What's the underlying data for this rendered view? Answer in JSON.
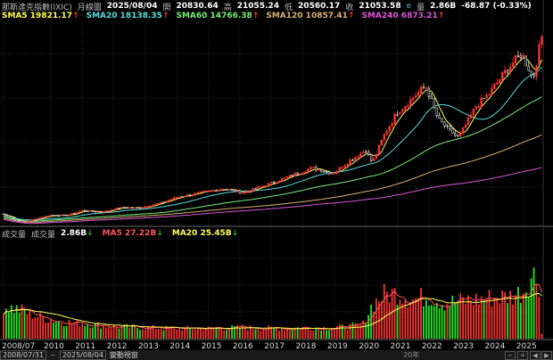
{
  "header": {
    "index_name": "那斯達克指數(IXIC)",
    "period": "月線圖",
    "date": "2025/08/04",
    "open_label": "開",
    "open": "20830.64",
    "high_label": "高",
    "high": "21055.24",
    "low_label": "低",
    "low": "20560.17",
    "close_label": "收",
    "close": "21053.58",
    "e_mark": "e",
    "vol_label": "量",
    "volume": "2.86B",
    "change": "-68.87 (-0.33%)"
  },
  "ma_legend": [
    {
      "text": "SMA5 19821.17",
      "arrow": "↑",
      "color": "#ffff55"
    },
    {
      "text": "SMA20 18138.35",
      "arrow": "↑",
      "color": "#55dddd"
    },
    {
      "text": "SMA60 14766.38",
      "arrow": "↑",
      "color": "#77ee77"
    },
    {
      "text": "SMA120 10857.41",
      "arrow": "↑",
      "color": "#d8b070"
    },
    {
      "text": "SMA240 6873.21",
      "arrow": "↑",
      "color": "#dd55dd"
    }
  ],
  "volume_legend": {
    "title": "成交量",
    "label": "成交量",
    "value": "2.86B",
    "value_arrow": "↓",
    "ma5": "MA5 27.22B",
    "ma5_arrow": "↓",
    "ma5_color": "#ff5555",
    "ma20": "MA20 25.45B",
    "ma20_arrow": "↓",
    "ma20_color": "#ffff55"
  },
  "bottom": {
    "start_date": "2008/07/31",
    "end_date": "2025/08/04",
    "extra": "變動視窗",
    "middle": "20年"
  },
  "colors": {
    "up": "#ff3333",
    "down": "#22ee22",
    "grid": "#333333",
    "background": "#000000"
  },
  "chart_data": {
    "type": "candlestick",
    "x_tick_labels": [
      "2008/07",
      "2010",
      "2011",
      "2012",
      "2013",
      "2014",
      "2015",
      "2016",
      "2017",
      "2018",
      "2019",
      "2020",
      "2021",
      "2022",
      "2023",
      "2024",
      "2025"
    ],
    "x_tick_years": [
      2008.5,
      2010,
      2011,
      2012,
      2013,
      2014,
      2015,
      2016,
      2017,
      2018,
      2019,
      2020,
      2021,
      2022,
      2023,
      2024,
      2025
    ],
    "x_range": [
      2008.5,
      2025.6
    ],
    "price_range": [
      1200,
      22500
    ],
    "volume_range": [
      0,
      60
    ],
    "price_anchors": [
      [
        2008.5,
        2300
      ],
      [
        2008.9,
        1600
      ],
      [
        2009.2,
        1450
      ],
      [
        2009.6,
        1900
      ],
      [
        2010.0,
        2200
      ],
      [
        2010.5,
        2150
      ],
      [
        2011.0,
        2700
      ],
      [
        2011.6,
        2500
      ],
      [
        2012.2,
        3000
      ],
      [
        2012.8,
        2950
      ],
      [
        2013.5,
        3500
      ],
      [
        2014.0,
        4100
      ],
      [
        2014.8,
        4600
      ],
      [
        2015.5,
        5000
      ],
      [
        2016.1,
        4550
      ],
      [
        2016.8,
        5350
      ],
      [
        2017.5,
        6200
      ],
      [
        2018.3,
        7200
      ],
      [
        2018.95,
        6600
      ],
      [
        2019.5,
        8000
      ],
      [
        2020.0,
        9100
      ],
      [
        2020.2,
        7700
      ],
      [
        2020.6,
        10800
      ],
      [
        2021.0,
        13100
      ],
      [
        2021.5,
        14600
      ],
      [
        2021.9,
        15900
      ],
      [
        2022.3,
        12300
      ],
      [
        2022.7,
        11000
      ],
      [
        2022.95,
        10400
      ],
      [
        2023.5,
        13700
      ],
      [
        2023.9,
        15000
      ],
      [
        2024.5,
        17700
      ],
      [
        2024.95,
        19300
      ],
      [
        2025.2,
        17500
      ],
      [
        2025.3,
        16500
      ],
      [
        2025.45,
        19000
      ],
      [
        2025.58,
        21053
      ]
    ],
    "volume_anchors": [
      [
        2008.5,
        19
      ],
      [
        2009.0,
        17
      ],
      [
        2009.6,
        13
      ],
      [
        2010.3,
        10
      ],
      [
        2011.0,
        9
      ],
      [
        2012.0,
        7
      ],
      [
        2013.0,
        6.5
      ],
      [
        2014.0,
        6
      ],
      [
        2015.0,
        6
      ],
      [
        2016.0,
        6.5
      ],
      [
        2017.0,
        6
      ],
      [
        2018.0,
        6.5
      ],
      [
        2019.0,
        6.5
      ],
      [
        2019.9,
        8
      ],
      [
        2020.2,
        20
      ],
      [
        2020.6,
        26
      ],
      [
        2021.0,
        27
      ],
      [
        2021.5,
        23
      ],
      [
        2022.0,
        25
      ],
      [
        2022.5,
        21
      ],
      [
        2023.0,
        22
      ],
      [
        2023.5,
        23
      ],
      [
        2024.0,
        24
      ],
      [
        2024.6,
        25
      ],
      [
        2025.0,
        28
      ],
      [
        2025.3,
        38
      ],
      [
        2025.5,
        33
      ],
      [
        2025.58,
        3
      ]
    ],
    "sma_series": [
      {
        "name": "SMA5",
        "color": "#ffff55",
        "last": 19821.17
      },
      {
        "name": "SMA20",
        "color": "#55dddd",
        "last": 18138.35
      },
      {
        "name": "SMA60",
        "color": "#77ee77",
        "last": 14766.38
      },
      {
        "name": "SMA120",
        "color": "#d8b070",
        "last": 10857.41
      },
      {
        "name": "SMA240",
        "color": "#dd55dd",
        "last": 6873.21
      }
    ],
    "volume_ma": [
      {
        "name": "MA5",
        "color": "#ff5555",
        "last": 27.22
      },
      {
        "name": "MA20",
        "color": "#ffff55",
        "last": 25.45
      }
    ],
    "volume_unit": "B",
    "grid": true
  }
}
